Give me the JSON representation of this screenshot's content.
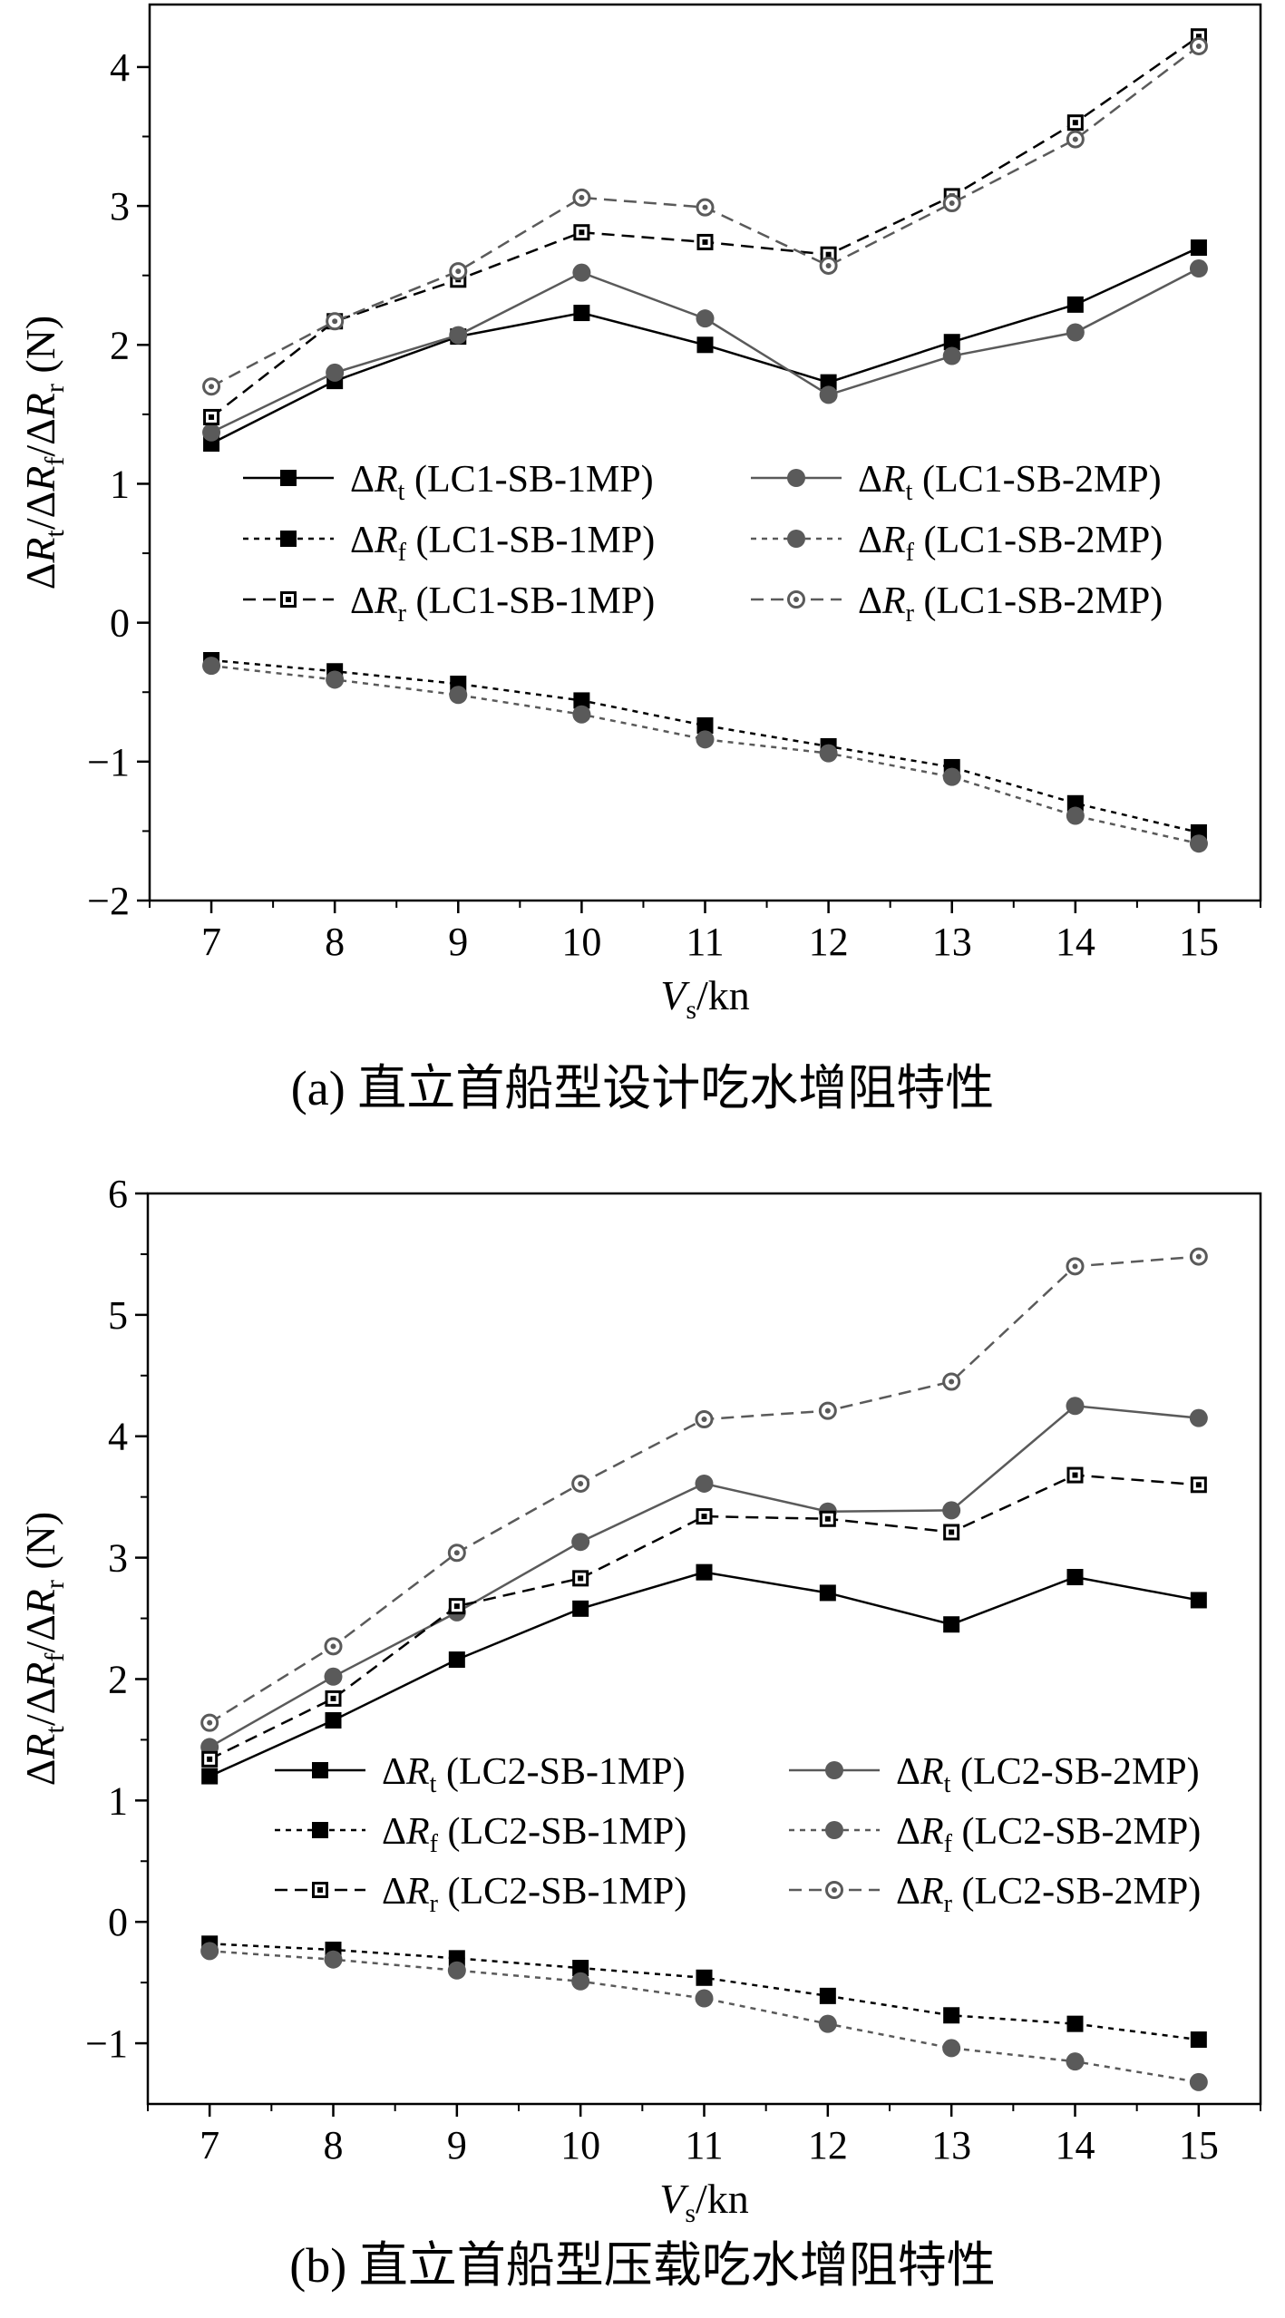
{
  "chart_data": [
    {
      "type": "line",
      "caption": "(a) 直立首船型设计吃水增阻特性",
      "xlabel": "V",
      "xlabel_sub": "s",
      "xlabel_unit": "/kn",
      "ylabel": {
        "parts": [
          {
            "t": "Δ"
          },
          {
            "t": "R",
            "it": true
          },
          {
            "t": "t",
            "sub": true
          },
          {
            "t": "/Δ"
          },
          {
            "t": "R",
            "it": true
          },
          {
            "t": "f",
            "sub": true
          },
          {
            "t": "/Δ"
          },
          {
            "t": "R",
            "it": true
          },
          {
            "t": "r",
            "sub": true
          },
          {
            "t": " (N)"
          }
        ]
      },
      "xlim": [
        6.5,
        15.5
      ],
      "ylim": [
        -2,
        4.45
      ],
      "x": [
        7,
        8,
        9,
        10,
        11,
        12,
        13,
        14,
        15
      ],
      "x_ticks": [
        "7",
        "8",
        "9",
        "10",
        "11",
        "12",
        "13",
        "14",
        "15"
      ],
      "y_ticks": [
        {
          "v": -2,
          "label": "−2"
        },
        {
          "v": -1,
          "label": "−1"
        },
        {
          "v": 0,
          "label": "0"
        },
        {
          "v": 1,
          "label": "1"
        },
        {
          "v": 2,
          "label": "2"
        },
        {
          "v": 3,
          "label": "3"
        },
        {
          "v": 4,
          "label": "4"
        }
      ],
      "series": [
        {
          "name": "ΔRt (LC1-SB-1MP)",
          "sym": "t",
          "case": "(LC1-SB-1MP)",
          "color": "#000000",
          "dash": "",
          "marker": "square-filled",
          "values": [
            1.29,
            1.74,
            2.06,
            2.23,
            2.0,
            1.73,
            2.02,
            2.29,
            2.7
          ]
        },
        {
          "name": "ΔRt (LC1-SB-2MP)",
          "sym": "t",
          "case": "(LC1-SB-2MP)",
          "color": "#5a5a5a",
          "dash": "",
          "marker": "circle-filled",
          "values": [
            1.37,
            1.8,
            2.07,
            2.52,
            2.19,
            1.64,
            1.92,
            2.09,
            2.55
          ]
        },
        {
          "name": "ΔRf (LC1-SB-1MP)",
          "sym": "f",
          "case": "(LC1-SB-1MP)",
          "color": "#000000",
          "dash": "6 6",
          "marker": "square-filled",
          "values": [
            -0.27,
            -0.35,
            -0.44,
            -0.56,
            -0.74,
            -0.89,
            -1.04,
            -1.3,
            -1.51
          ]
        },
        {
          "name": "ΔRf (LC1-SB-2MP)",
          "sym": "f",
          "case": "(LC1-SB-2MP)",
          "color": "#5a5a5a",
          "dash": "6 6",
          "marker": "circle-filled",
          "values": [
            -0.31,
            -0.41,
            -0.52,
            -0.66,
            -0.84,
            -0.94,
            -1.11,
            -1.39,
            -1.59
          ]
        },
        {
          "name": "ΔRr (LC1-SB-1MP)",
          "sym": "r",
          "case": "(LC1-SB-1MP)",
          "color": "#000000",
          "dash": "14 8",
          "marker": "square-open",
          "values": [
            1.48,
            2.17,
            2.47,
            2.81,
            2.74,
            2.65,
            3.07,
            3.6,
            4.22
          ]
        },
        {
          "name": "ΔRr (LC1-SB-2MP)",
          "sym": "r",
          "case": "(LC1-SB-2MP)",
          "color": "#5a5a5a",
          "dash": "14 8",
          "marker": "circle-open",
          "values": [
            1.7,
            2.17,
            2.53,
            3.06,
            2.99,
            2.57,
            3.02,
            3.48,
            4.15
          ]
        }
      ]
    },
    {
      "type": "line",
      "caption": "(b) 直立首船型压载吃水增阻特性",
      "xlabel": "V",
      "xlabel_sub": "s",
      "xlabel_unit": "/kn",
      "ylabel": {
        "parts": [
          {
            "t": "Δ"
          },
          {
            "t": "R",
            "it": true
          },
          {
            "t": "t",
            "sub": true
          },
          {
            "t": "/Δ"
          },
          {
            "t": "R",
            "it": true
          },
          {
            "t": "f",
            "sub": true
          },
          {
            "t": "/Δ"
          },
          {
            "t": "R",
            "it": true
          },
          {
            "t": "r",
            "sub": true
          },
          {
            "t": " (N)"
          }
        ]
      },
      "xlim": [
        6.5,
        15.5
      ],
      "ylim": [
        -1.5,
        6
      ],
      "x": [
        7,
        8,
        9,
        10,
        11,
        12,
        13,
        14,
        15
      ],
      "x_ticks": [
        "7",
        "8",
        "9",
        "10",
        "11",
        "12",
        "13",
        "14",
        "15"
      ],
      "y_ticks": [
        {
          "v": -1,
          "label": "−1"
        },
        {
          "v": 0,
          "label": "0"
        },
        {
          "v": 1,
          "label": "1"
        },
        {
          "v": 2,
          "label": "2"
        },
        {
          "v": 3,
          "label": "3"
        },
        {
          "v": 4,
          "label": "4"
        },
        {
          "v": 5,
          "label": "5"
        },
        {
          "v": 6,
          "label": "6"
        }
      ],
      "series": [
        {
          "name": "ΔRt (LC2-SB-1MP)",
          "sym": "t",
          "case": "(LC2-SB-1MP)",
          "color": "#000000",
          "dash": "",
          "marker": "square-filled",
          "values": [
            1.2,
            1.66,
            2.16,
            2.58,
            2.88,
            2.71,
            2.45,
            2.84,
            2.65
          ]
        },
        {
          "name": "ΔRt (LC2-SB-2MP)",
          "sym": "t",
          "case": "(LC2-SB-2MP)",
          "color": "#5a5a5a",
          "dash": "",
          "marker": "circle-filled",
          "values": [
            1.44,
            2.02,
            2.55,
            3.13,
            3.61,
            3.38,
            3.39,
            4.25,
            4.15
          ]
        },
        {
          "name": "ΔRf (LC2-SB-1MP)",
          "sym": "f",
          "case": "(LC2-SB-1MP)",
          "color": "#000000",
          "dash": "6 6",
          "marker": "square-filled",
          "values": [
            -0.18,
            -0.23,
            -0.3,
            -0.38,
            -0.46,
            -0.61,
            -0.77,
            -0.84,
            -0.97
          ]
        },
        {
          "name": "ΔRf (LC2-SB-2MP)",
          "sym": "f",
          "case": "(LC2-SB-2MP)",
          "color": "#5a5a5a",
          "dash": "6 6",
          "marker": "circle-filled",
          "values": [
            -0.24,
            -0.31,
            -0.4,
            -0.49,
            -0.63,
            -0.84,
            -1.04,
            -1.15,
            -1.32
          ]
        },
        {
          "name": "ΔRr (LC2-SB-1MP)",
          "sym": "r",
          "case": "(LC2-SB-1MP)",
          "color": "#000000",
          "dash": "14 8",
          "marker": "square-open",
          "values": [
            1.34,
            1.84,
            2.6,
            2.83,
            3.34,
            3.32,
            3.21,
            3.68,
            3.6
          ]
        },
        {
          "name": "ΔRr (LC2-SB-2MP)",
          "sym": "r",
          "case": "(LC2-SB-2MP)",
          "color": "#5a5a5a",
          "dash": "14 8",
          "marker": "circle-open",
          "values": [
            1.64,
            2.27,
            3.04,
            3.61,
            4.14,
            4.21,
            4.45,
            5.4,
            5.48
          ]
        }
      ]
    }
  ]
}
